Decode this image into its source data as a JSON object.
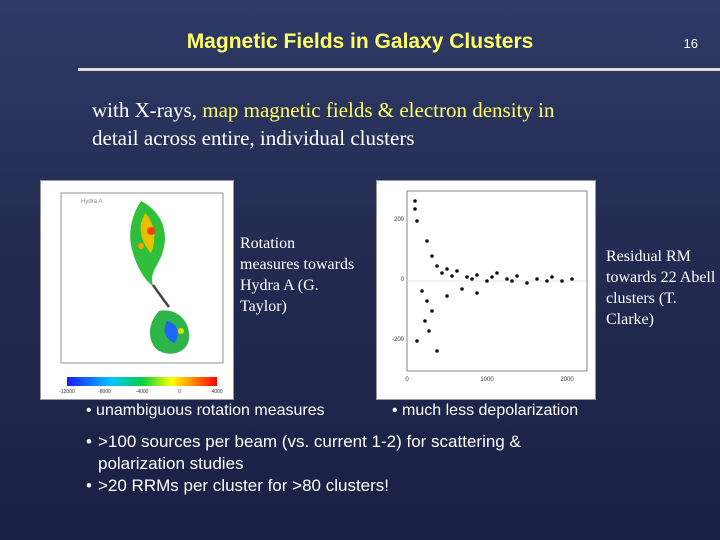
{
  "slide": {
    "title": "Magnetic Fields in Galaxy Clusters",
    "page_number": "16",
    "intro_plain": "with X-rays, ",
    "intro_highlight": "map magnetic fields & electron density in",
    "intro_line2": "detail across entire, individual clusters"
  },
  "figures": {
    "left": {
      "caption": "Rotation measures towards Hydra A (G. Taylor)",
      "plot_label": "Hydra A",
      "colorbar_ticks": [
        "-12000",
        "-8000",
        "-4000",
        "0",
        "4000"
      ]
    },
    "right": {
      "caption": "Residual RM towards 22 Abell clusters (T. Clarke)",
      "x_ticks": [
        "0",
        "1000",
        "2000"
      ],
      "y_ticks": [
        "200",
        "0",
        "-200"
      ]
    }
  },
  "bullets_small": [
    "unambiguous rotation measures",
    "much less depolarization"
  ],
  "bullets": [
    ">100 sources per beam (vs. current 1-2) for scattering &",
    "polarization studies",
    ">20 RRMs per cluster for >80 clusters!"
  ],
  "colors": {
    "title": "#ffff66",
    "highlight": "#ffff66",
    "background": "#232b52"
  }
}
